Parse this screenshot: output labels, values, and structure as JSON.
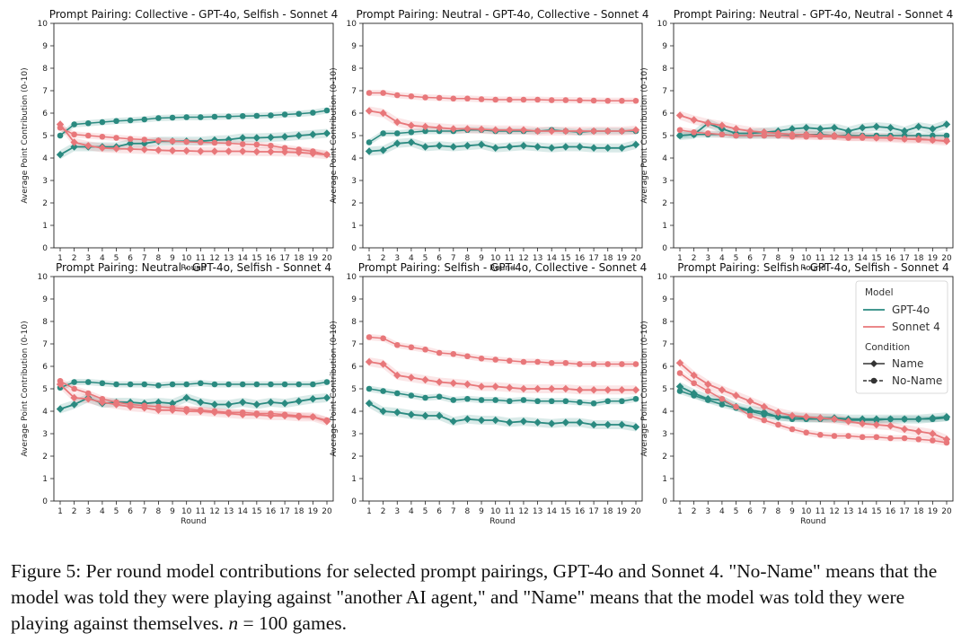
{
  "chart_data": [
    {
      "type": "line",
      "title": "Prompt Pairing: Collective - GPT-4o, Selfish - Sonnet 4",
      "xlabel": "Round",
      "ylabel": "Average Point Contribution (0-10)",
      "x": [
        1,
        2,
        3,
        4,
        5,
        6,
        7,
        8,
        9,
        10,
        11,
        12,
        13,
        14,
        15,
        16,
        17,
        18,
        19,
        20
      ],
      "ylim": [
        0,
        10
      ],
      "series": [
        {
          "name": "GPT-4o",
          "condition": "No-Name",
          "values": [
            5.0,
            5.5,
            5.55,
            5.6,
            5.65,
            5.68,
            5.72,
            5.78,
            5.8,
            5.82,
            5.82,
            5.84,
            5.85,
            5.87,
            5.88,
            5.9,
            5.94,
            5.97,
            6.02,
            6.12
          ]
        },
        {
          "name": "GPT-4o",
          "condition": "Name",
          "values": [
            4.15,
            4.5,
            4.5,
            4.5,
            4.5,
            4.65,
            4.65,
            4.75,
            4.75,
            4.75,
            4.75,
            4.8,
            4.82,
            4.9,
            4.9,
            4.92,
            4.95,
            5.0,
            5.05,
            5.1
          ]
        },
        {
          "name": "Sonnet 4",
          "condition": "No-Name",
          "values": [
            5.35,
            5.05,
            5.0,
            4.95,
            4.9,
            4.85,
            4.82,
            4.78,
            4.75,
            4.72,
            4.7,
            4.68,
            4.66,
            4.62,
            4.6,
            4.55,
            4.45,
            4.38,
            4.3,
            4.15
          ]
        },
        {
          "name": "Sonnet 4",
          "condition": "Name",
          "values": [
            5.5,
            4.7,
            4.55,
            4.45,
            4.42,
            4.4,
            4.38,
            4.35,
            4.33,
            4.32,
            4.3,
            4.3,
            4.3,
            4.3,
            4.28,
            4.28,
            4.27,
            4.25,
            4.2,
            4.15
          ]
        }
      ]
    },
    {
      "type": "line",
      "title": "Prompt Pairing: Neutral - GPT-4o, Collective - Sonnet 4",
      "xlabel": "Round",
      "ylabel": "Average Point Contribution (0-10)",
      "x": [
        1,
        2,
        3,
        4,
        5,
        6,
        7,
        8,
        9,
        10,
        11,
        12,
        13,
        14,
        15,
        16,
        17,
        18,
        19,
        20
      ],
      "ylim": [
        0,
        10
      ],
      "series": [
        {
          "name": "GPT-4o",
          "condition": "No-Name",
          "values": [
            4.7,
            5.1,
            5.1,
            5.15,
            5.2,
            5.2,
            5.2,
            5.25,
            5.25,
            5.2,
            5.2,
            5.2,
            5.2,
            5.25,
            5.2,
            5.15,
            5.2,
            5.2,
            5.2,
            5.2
          ]
        },
        {
          "name": "GPT-4o",
          "condition": "Name",
          "values": [
            4.3,
            4.35,
            4.65,
            4.7,
            4.5,
            4.55,
            4.5,
            4.55,
            4.6,
            4.45,
            4.5,
            4.55,
            4.5,
            4.45,
            4.5,
            4.5,
            4.45,
            4.45,
            4.45,
            4.6
          ]
        },
        {
          "name": "Sonnet 4",
          "condition": "No-Name",
          "values": [
            6.9,
            6.9,
            6.8,
            6.75,
            6.7,
            6.68,
            6.65,
            6.65,
            6.62,
            6.6,
            6.6,
            6.6,
            6.6,
            6.58,
            6.58,
            6.57,
            6.56,
            6.55,
            6.55,
            6.55
          ]
        },
        {
          "name": "Sonnet 4",
          "condition": "Name",
          "values": [
            6.1,
            6.0,
            5.6,
            5.45,
            5.4,
            5.35,
            5.3,
            5.3,
            5.28,
            5.25,
            5.25,
            5.25,
            5.2,
            5.2,
            5.2,
            5.2,
            5.2,
            5.2,
            5.2,
            5.25
          ]
        }
      ]
    },
    {
      "type": "line",
      "title": "Prompt Pairing: Neutral - GPT-4o, Neutral - Sonnet 4",
      "xlabel": "Round",
      "ylabel": "Average Point Contribution (0-10)",
      "x": [
        1,
        2,
        3,
        4,
        5,
        6,
        7,
        8,
        9,
        10,
        11,
        12,
        13,
        14,
        15,
        16,
        17,
        18,
        19,
        20
      ],
      "ylim": [
        0,
        10
      ],
      "series": [
        {
          "name": "GPT-4o",
          "condition": "No-Name",
          "values": [
            5.0,
            5.05,
            5.05,
            5.05,
            5.0,
            5.0,
            5.0,
            5.0,
            5.0,
            5.05,
            5.05,
            5.0,
            5.0,
            5.0,
            5.0,
            5.0,
            5.0,
            5.0,
            5.0,
            5.0
          ]
        },
        {
          "name": "GPT-4o",
          "condition": "Name",
          "values": [
            5.0,
            5.05,
            5.55,
            5.3,
            5.1,
            5.1,
            5.15,
            5.2,
            5.3,
            5.35,
            5.3,
            5.35,
            5.2,
            5.35,
            5.4,
            5.35,
            5.2,
            5.4,
            5.3,
            5.5
          ]
        },
        {
          "name": "Sonnet 4",
          "condition": "No-Name",
          "values": [
            5.25,
            5.15,
            5.1,
            5.05,
            5.0,
            5.0,
            5.0,
            5.0,
            4.95,
            4.95,
            4.95,
            4.95,
            4.9,
            4.9,
            4.9,
            4.88,
            4.85,
            4.82,
            4.8,
            4.78
          ]
        },
        {
          "name": "Sonnet 4",
          "condition": "Name",
          "values": [
            5.9,
            5.7,
            5.55,
            5.45,
            5.3,
            5.2,
            5.15,
            5.1,
            5.05,
            5.05,
            5.0,
            5.0,
            4.95,
            4.95,
            4.9,
            4.9,
            4.85,
            4.85,
            4.8,
            4.75
          ]
        }
      ]
    },
    {
      "type": "line",
      "title": "Prompt Pairing: Neutral - GPT-4o, Selfish - Sonnet 4",
      "xlabel": "Round",
      "ylabel": "Average Point Contribution (0-10)",
      "x": [
        1,
        2,
        3,
        4,
        5,
        6,
        7,
        8,
        9,
        10,
        11,
        12,
        13,
        14,
        15,
        16,
        17,
        18,
        19,
        20
      ],
      "ylim": [
        0,
        10
      ],
      "series": [
        {
          "name": "GPT-4o",
          "condition": "No-Name",
          "values": [
            5.05,
            5.3,
            5.3,
            5.25,
            5.2,
            5.2,
            5.2,
            5.15,
            5.2,
            5.2,
            5.25,
            5.2,
            5.2,
            5.2,
            5.2,
            5.2,
            5.2,
            5.2,
            5.2,
            5.3
          ]
        },
        {
          "name": "GPT-4o",
          "condition": "Name",
          "values": [
            4.1,
            4.3,
            4.6,
            4.35,
            4.4,
            4.4,
            4.35,
            4.4,
            4.35,
            4.6,
            4.4,
            4.3,
            4.3,
            4.4,
            4.3,
            4.4,
            4.35,
            4.45,
            4.55,
            4.6
          ]
        },
        {
          "name": "Sonnet 4",
          "condition": "No-Name",
          "values": [
            5.35,
            5.0,
            4.8,
            4.55,
            4.4,
            4.3,
            4.25,
            4.2,
            4.15,
            4.1,
            4.05,
            4.0,
            3.95,
            3.95,
            3.9,
            3.9,
            3.85,
            3.8,
            3.75,
            3.6
          ]
        },
        {
          "name": "Sonnet 4",
          "condition": "Name",
          "values": [
            5.2,
            4.6,
            4.55,
            4.4,
            4.3,
            4.2,
            4.15,
            4.05,
            4.05,
            4.0,
            4.0,
            3.95,
            3.9,
            3.85,
            3.85,
            3.8,
            3.8,
            3.75,
            3.75,
            3.55
          ]
        }
      ]
    },
    {
      "type": "line",
      "title": "Prompt Pairing: Selfish - GPT-4o, Collective - Sonnet 4",
      "xlabel": "Round",
      "ylabel": "Average Point Contribution (0-10)",
      "x": [
        1,
        2,
        3,
        4,
        5,
        6,
        7,
        8,
        9,
        10,
        11,
        12,
        13,
        14,
        15,
        16,
        17,
        18,
        19,
        20
      ],
      "ylim": [
        0,
        10
      ],
      "series": [
        {
          "name": "GPT-4o",
          "condition": "No-Name",
          "values": [
            5.0,
            4.9,
            4.8,
            4.7,
            4.6,
            4.65,
            4.5,
            4.55,
            4.5,
            4.5,
            4.45,
            4.5,
            4.45,
            4.45,
            4.45,
            4.4,
            4.35,
            4.45,
            4.45,
            4.55
          ]
        },
        {
          "name": "GPT-4o",
          "condition": "Name",
          "values": [
            4.35,
            4.0,
            3.95,
            3.85,
            3.8,
            3.8,
            3.55,
            3.65,
            3.6,
            3.6,
            3.5,
            3.55,
            3.5,
            3.45,
            3.5,
            3.5,
            3.4,
            3.4,
            3.4,
            3.3
          ]
        },
        {
          "name": "Sonnet 4",
          "condition": "No-Name",
          "values": [
            7.3,
            7.25,
            6.95,
            6.85,
            6.75,
            6.6,
            6.55,
            6.45,
            6.35,
            6.3,
            6.25,
            6.2,
            6.2,
            6.15,
            6.15,
            6.1,
            6.1,
            6.1,
            6.1,
            6.1
          ]
        },
        {
          "name": "Sonnet 4",
          "condition": "Name",
          "values": [
            6.2,
            6.1,
            5.6,
            5.5,
            5.4,
            5.3,
            5.25,
            5.2,
            5.1,
            5.1,
            5.05,
            5.0,
            5.0,
            5.0,
            5.0,
            4.95,
            4.95,
            4.95,
            4.95,
            4.95
          ]
        }
      ]
    },
    {
      "type": "line",
      "title": "Prompt Pairing: Selfish - GPT-4o, Selfish - Sonnet 4",
      "xlabel": "Round",
      "ylabel": "Average Point Contribution (0-10)",
      "x": [
        1,
        2,
        3,
        4,
        5,
        6,
        7,
        8,
        9,
        10,
        11,
        12,
        13,
        14,
        15,
        16,
        17,
        18,
        19,
        20
      ],
      "ylim": [
        0,
        10
      ],
      "legend_position": "top-right",
      "series": [
        {
          "name": "GPT-4o",
          "condition": "No-Name",
          "values": [
            4.9,
            4.7,
            4.5,
            4.3,
            4.15,
            4.0,
            3.85,
            3.75,
            3.65,
            3.65,
            3.65,
            3.65,
            3.6,
            3.6,
            3.6,
            3.65,
            3.65,
            3.65,
            3.65,
            3.7
          ]
        },
        {
          "name": "GPT-4o",
          "condition": "Name",
          "values": [
            5.1,
            4.8,
            4.55,
            4.5,
            4.2,
            4.05,
            3.95,
            3.75,
            3.75,
            3.7,
            3.7,
            3.7,
            3.65,
            3.65,
            3.65,
            3.65,
            3.65,
            3.65,
            3.7,
            3.75
          ]
        },
        {
          "name": "Sonnet 4",
          "condition": "No-Name",
          "values": [
            5.7,
            5.25,
            4.9,
            4.55,
            4.2,
            3.8,
            3.6,
            3.4,
            3.2,
            3.05,
            2.95,
            2.9,
            2.9,
            2.85,
            2.85,
            2.8,
            2.8,
            2.75,
            2.7,
            2.6
          ]
        },
        {
          "name": "Sonnet 4",
          "condition": "Name",
          "values": [
            6.15,
            5.6,
            5.2,
            4.95,
            4.7,
            4.45,
            4.2,
            3.95,
            3.8,
            3.75,
            3.7,
            3.65,
            3.55,
            3.45,
            3.4,
            3.35,
            3.2,
            3.1,
            3.0,
            2.75
          ]
        }
      ]
    }
  ],
  "legend": {
    "model_title": "Model",
    "condition_title": "Condition",
    "items_model": [
      "GPT-4o",
      "Sonnet 4"
    ],
    "items_condition": [
      "Name",
      "No-Name"
    ]
  },
  "colors": {
    "GPT-4o": "#2a8a80",
    "Sonnet 4": "#e8777a"
  },
  "caption": {
    "label": "Figure 5:",
    "text1": " Per round model contributions for selected prompt pairings, GPT-4o and Sonnet 4. \"No-Name\" means that the model was told they were playing against \"another AI agent,\" and \"Name\" means that the model was told they were playing against themselves. ",
    "n_symbol": "n",
    "text2": " = 100 games."
  }
}
